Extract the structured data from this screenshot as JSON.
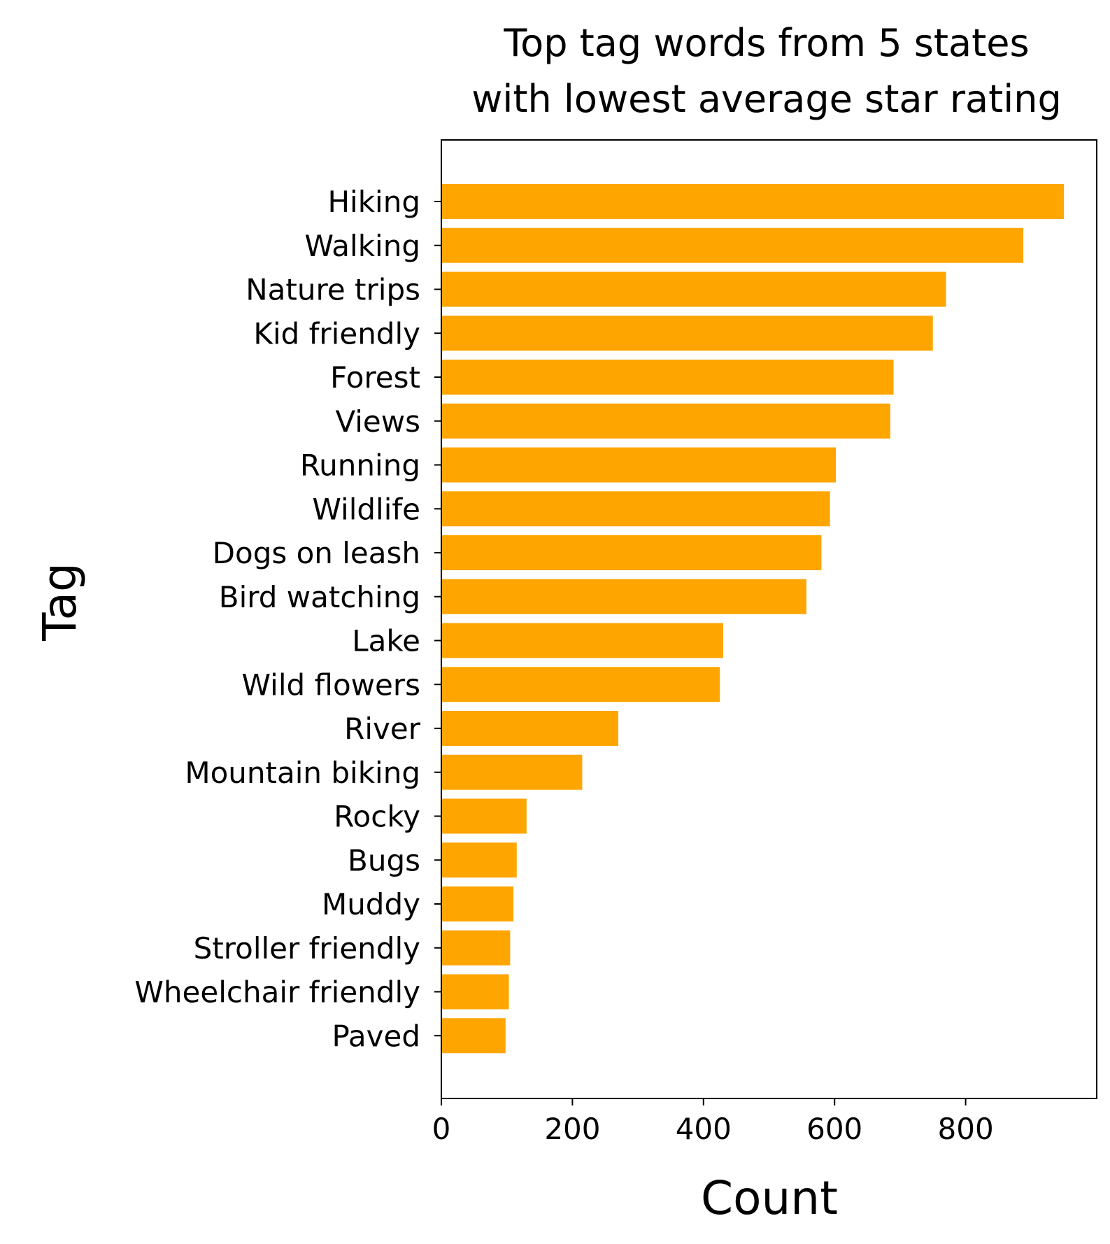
{
  "chart_data": {
    "type": "bar",
    "orientation": "horizontal",
    "title": [
      "Top tag words from 5 states",
      "with lowest average star rating"
    ],
    "xlabel": "Count",
    "ylabel": "Tag",
    "xlim": [
      0,
      1000
    ],
    "xticks": [
      0,
      200,
      400,
      600,
      800
    ],
    "grid": false,
    "bar_color": "#FFA500",
    "categories": [
      "Hiking",
      "Walking",
      "Nature trips",
      "Kid friendly",
      "Forest",
      "Views",
      "Running",
      "Wildlife",
      "Dogs on leash",
      "Bird watching",
      "Lake",
      "Wild flowers",
      "River",
      "Mountain biking",
      "Rocky",
      "Bugs",
      "Muddy",
      "Stroller friendly",
      "Wheelchair friendly",
      "Paved"
    ],
    "values": [
      950,
      888,
      770,
      750,
      690,
      685,
      602,
      593,
      580,
      557,
      430,
      425,
      270,
      215,
      130,
      115,
      110,
      105,
      103,
      98
    ]
  }
}
